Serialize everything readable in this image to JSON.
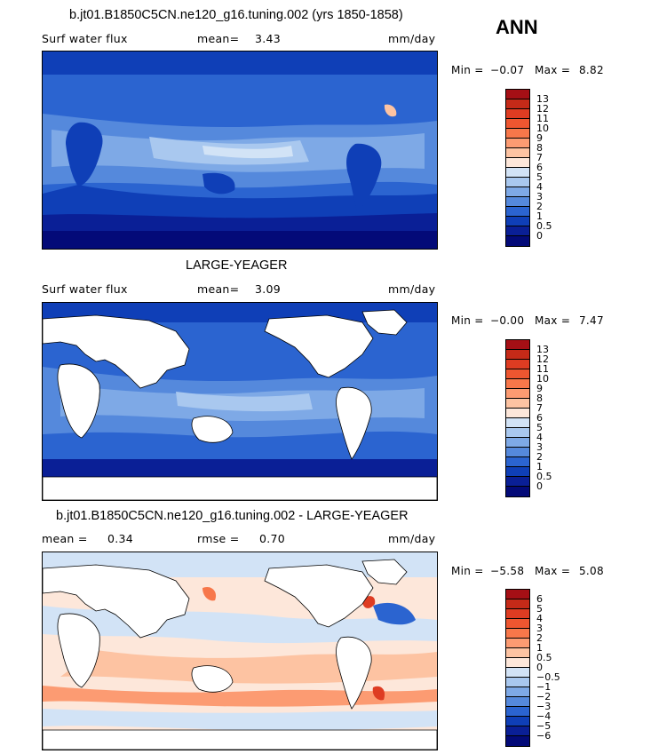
{
  "season": "ANN",
  "panels": [
    {
      "title": "b.jt01.B1850C5CN.ne120_g16.tuning.002 (yrs 1850-1858)",
      "variable": "Surf water flux",
      "stat_label": "mean=",
      "stat_value": "3.43",
      "units": "mm/day",
      "min_label": "Min =",
      "min_value": "−0.07",
      "max_label": "Max =",
      "max_value": "8.82",
      "colorbar": {
        "labels": [
          "13",
          "12",
          "11",
          "10",
          "9",
          "8",
          "7",
          "6",
          "5",
          "4",
          "3",
          "2",
          "1",
          "0.5",
          "0"
        ],
        "colors": [
          "#a50f15",
          "#c52a18",
          "#de3c22",
          "#ee5630",
          "#f7774a",
          "#fc9b72",
          "#fdc3a2",
          "#fde7da",
          "#d2e3f6",
          "#a9c8ef",
          "#7ea9e6",
          "#5589dc",
          "#2b64d0",
          "#0f3fb7",
          "#0a1f96",
          "#030a78"
        ]
      }
    },
    {
      "title": "LARGE-YEAGER",
      "variable": "Surf water flux",
      "stat_label": "mean=",
      "stat_value": "3.09",
      "units": "mm/day",
      "min_label": "Min =",
      "min_value": "−0.00",
      "max_label": "Max =",
      "max_value": "7.47",
      "colorbar": {
        "labels": [
          "13",
          "12",
          "11",
          "10",
          "9",
          "8",
          "7",
          "6",
          "5",
          "4",
          "3",
          "2",
          "1",
          "0.5",
          "0"
        ],
        "colors": [
          "#a50f15",
          "#c52a18",
          "#de3c22",
          "#ee5630",
          "#f7774a",
          "#fc9b72",
          "#fdc3a2",
          "#fde7da",
          "#d2e3f6",
          "#a9c8ef",
          "#7ea9e6",
          "#5589dc",
          "#2b64d0",
          "#0f3fb7",
          "#0a1f96",
          "#030a78"
        ]
      }
    },
    {
      "title": "b.jt01.B1850C5CN.ne120_g16.tuning.002 - LARGE-YEAGER",
      "variable": "",
      "stat_label": "mean =",
      "stat_value": "0.34",
      "stat2_label": "rmse =",
      "stat2_value": "0.70",
      "units": "mm/day",
      "min_label": "Min =",
      "min_value": "−5.58",
      "max_label": "Max =",
      "max_value": "5.08",
      "colorbar": {
        "labels": [
          "6",
          "5",
          "4",
          "3",
          "2",
          "1",
          "0.5",
          "0",
          "−0.5",
          "−1",
          "−2",
          "−3",
          "−4",
          "−5",
          "−6"
        ],
        "colors": [
          "#a50f15",
          "#c52a18",
          "#de3c22",
          "#ee5630",
          "#f7774a",
          "#fc9b72",
          "#fdc3a2",
          "#fde7da",
          "#d2e3f6",
          "#a9c8ef",
          "#7ea9e6",
          "#5589dc",
          "#2b64d0",
          "#0f3fb7",
          "#0a1f96",
          "#030a78"
        ]
      }
    }
  ]
}
